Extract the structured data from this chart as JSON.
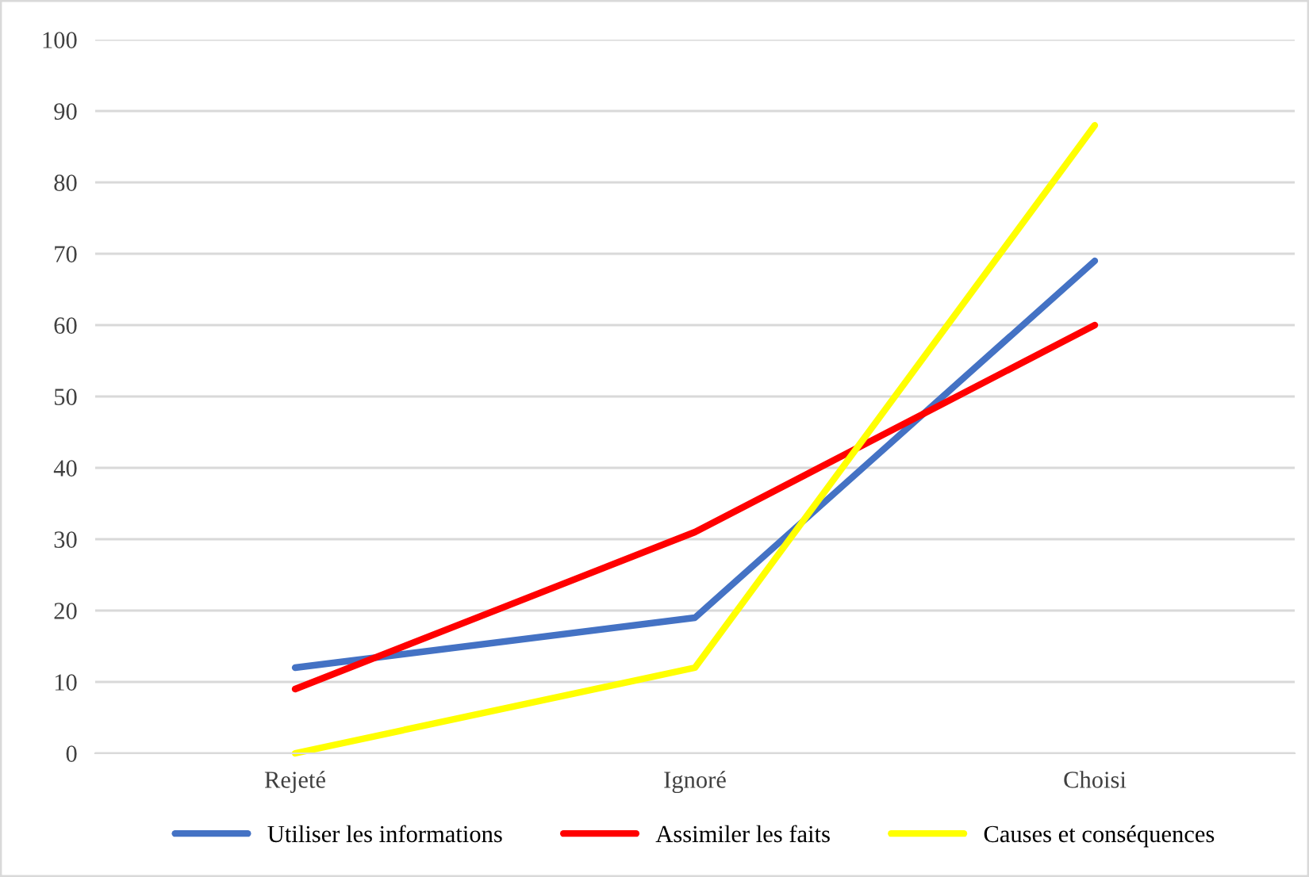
{
  "chart_data": {
    "type": "line",
    "categories": [
      "Rejeté",
      "Ignoré",
      "Choisi"
    ],
    "series": [
      {
        "name": "Utiliser les informations",
        "color": "#4472c4",
        "values": [
          12,
          19,
          69
        ]
      },
      {
        "name": "Assimiler les faits",
        "color": "#ff0000",
        "values": [
          9,
          31,
          60
        ]
      },
      {
        "name": "Causes et conséquences",
        "color": "#ffff00",
        "values": [
          0,
          12,
          88
        ]
      }
    ],
    "ylim": [
      0,
      100
    ],
    "yticks": [
      0,
      10,
      20,
      30,
      40,
      50,
      60,
      70,
      80,
      90,
      100
    ],
    "grid": "y",
    "legend": "bottom",
    "marker": "none",
    "line_style": "solid"
  }
}
